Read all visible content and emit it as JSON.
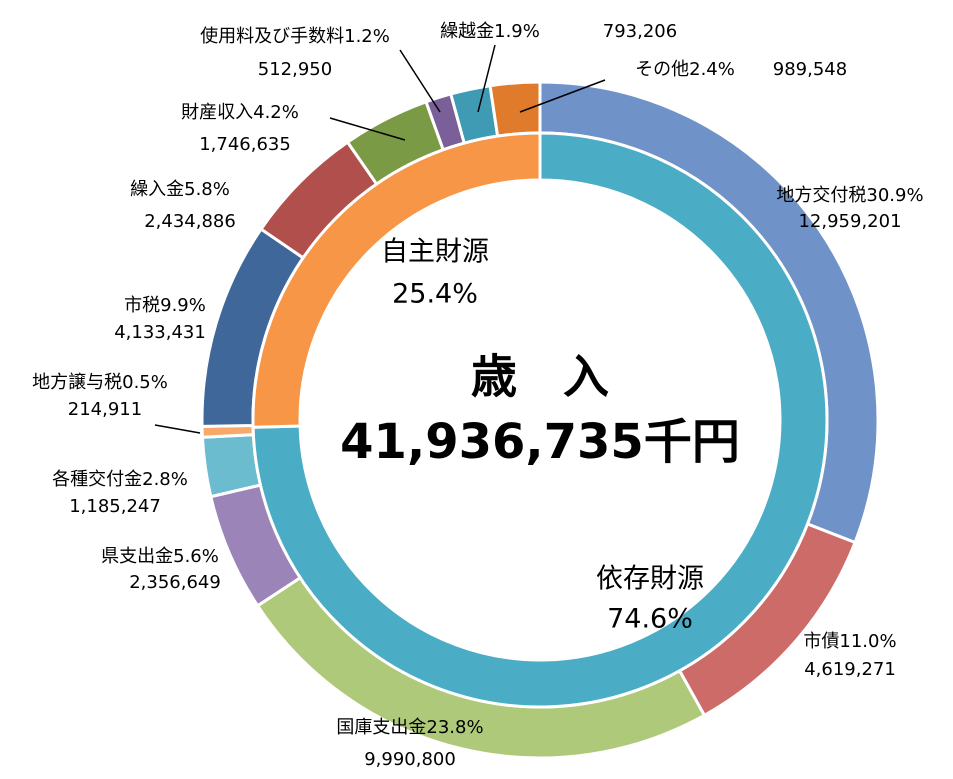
{
  "chart_data": {
    "type": "nested-donut",
    "title": "歳　入",
    "total_label": "41,936,735千円",
    "outer": {
      "categories": [
        "地方交付税",
        "市債",
        "国庫支出金",
        "県支出金",
        "各種交付金",
        "地方譲与税",
        "市税",
        "繰入金",
        "財産収入",
        "使用料及び手数料",
        "繰越金",
        "その他"
      ],
      "values": [
        12959201,
        4619271,
        9990800,
        2356649,
        1185247,
        214911,
        4133431,
        2434886,
        1746635,
        512950,
        793206,
        989548
      ],
      "value_labels": [
        "12,959,201",
        "4,619,271",
        "9,990,800",
        "2,356,649",
        "1,185,247",
        "214,911",
        "4,133,431",
        "2,434,886",
        "1,746,635",
        "512,950",
        "793,206",
        "989,548"
      ],
      "percents": [
        30.9,
        11.0,
        23.8,
        5.6,
        2.8,
        0.5,
        9.9,
        5.8,
        4.2,
        1.2,
        1.9,
        2.4
      ],
      "percent_labels": [
        "30.9%",
        "11.0%",
        "23.8%",
        "5.6%",
        "2.8%",
        "0.5%",
        "9.9%",
        "5.8%",
        "4.2%",
        "1.2%",
        "1.9%",
        "2.4%"
      ],
      "colors": [
        "#6f93c9",
        "#cd6b68",
        "#afc97a",
        "#9a84b8",
        "#6cbccf",
        "#f8a86a",
        "#40679a",
        "#b14f4c",
        "#7b9a45",
        "#7a5f99",
        "#3f9bb3",
        "#e07b2c"
      ]
    },
    "inner": {
      "categories": [
        "依存財源",
        "自主財源"
      ],
      "values": [
        74.6,
        25.4
      ],
      "value_labels": [
        "74.6%",
        "25.4%"
      ],
      "colors": [
        "#4bacc6",
        "#f79646"
      ]
    }
  }
}
